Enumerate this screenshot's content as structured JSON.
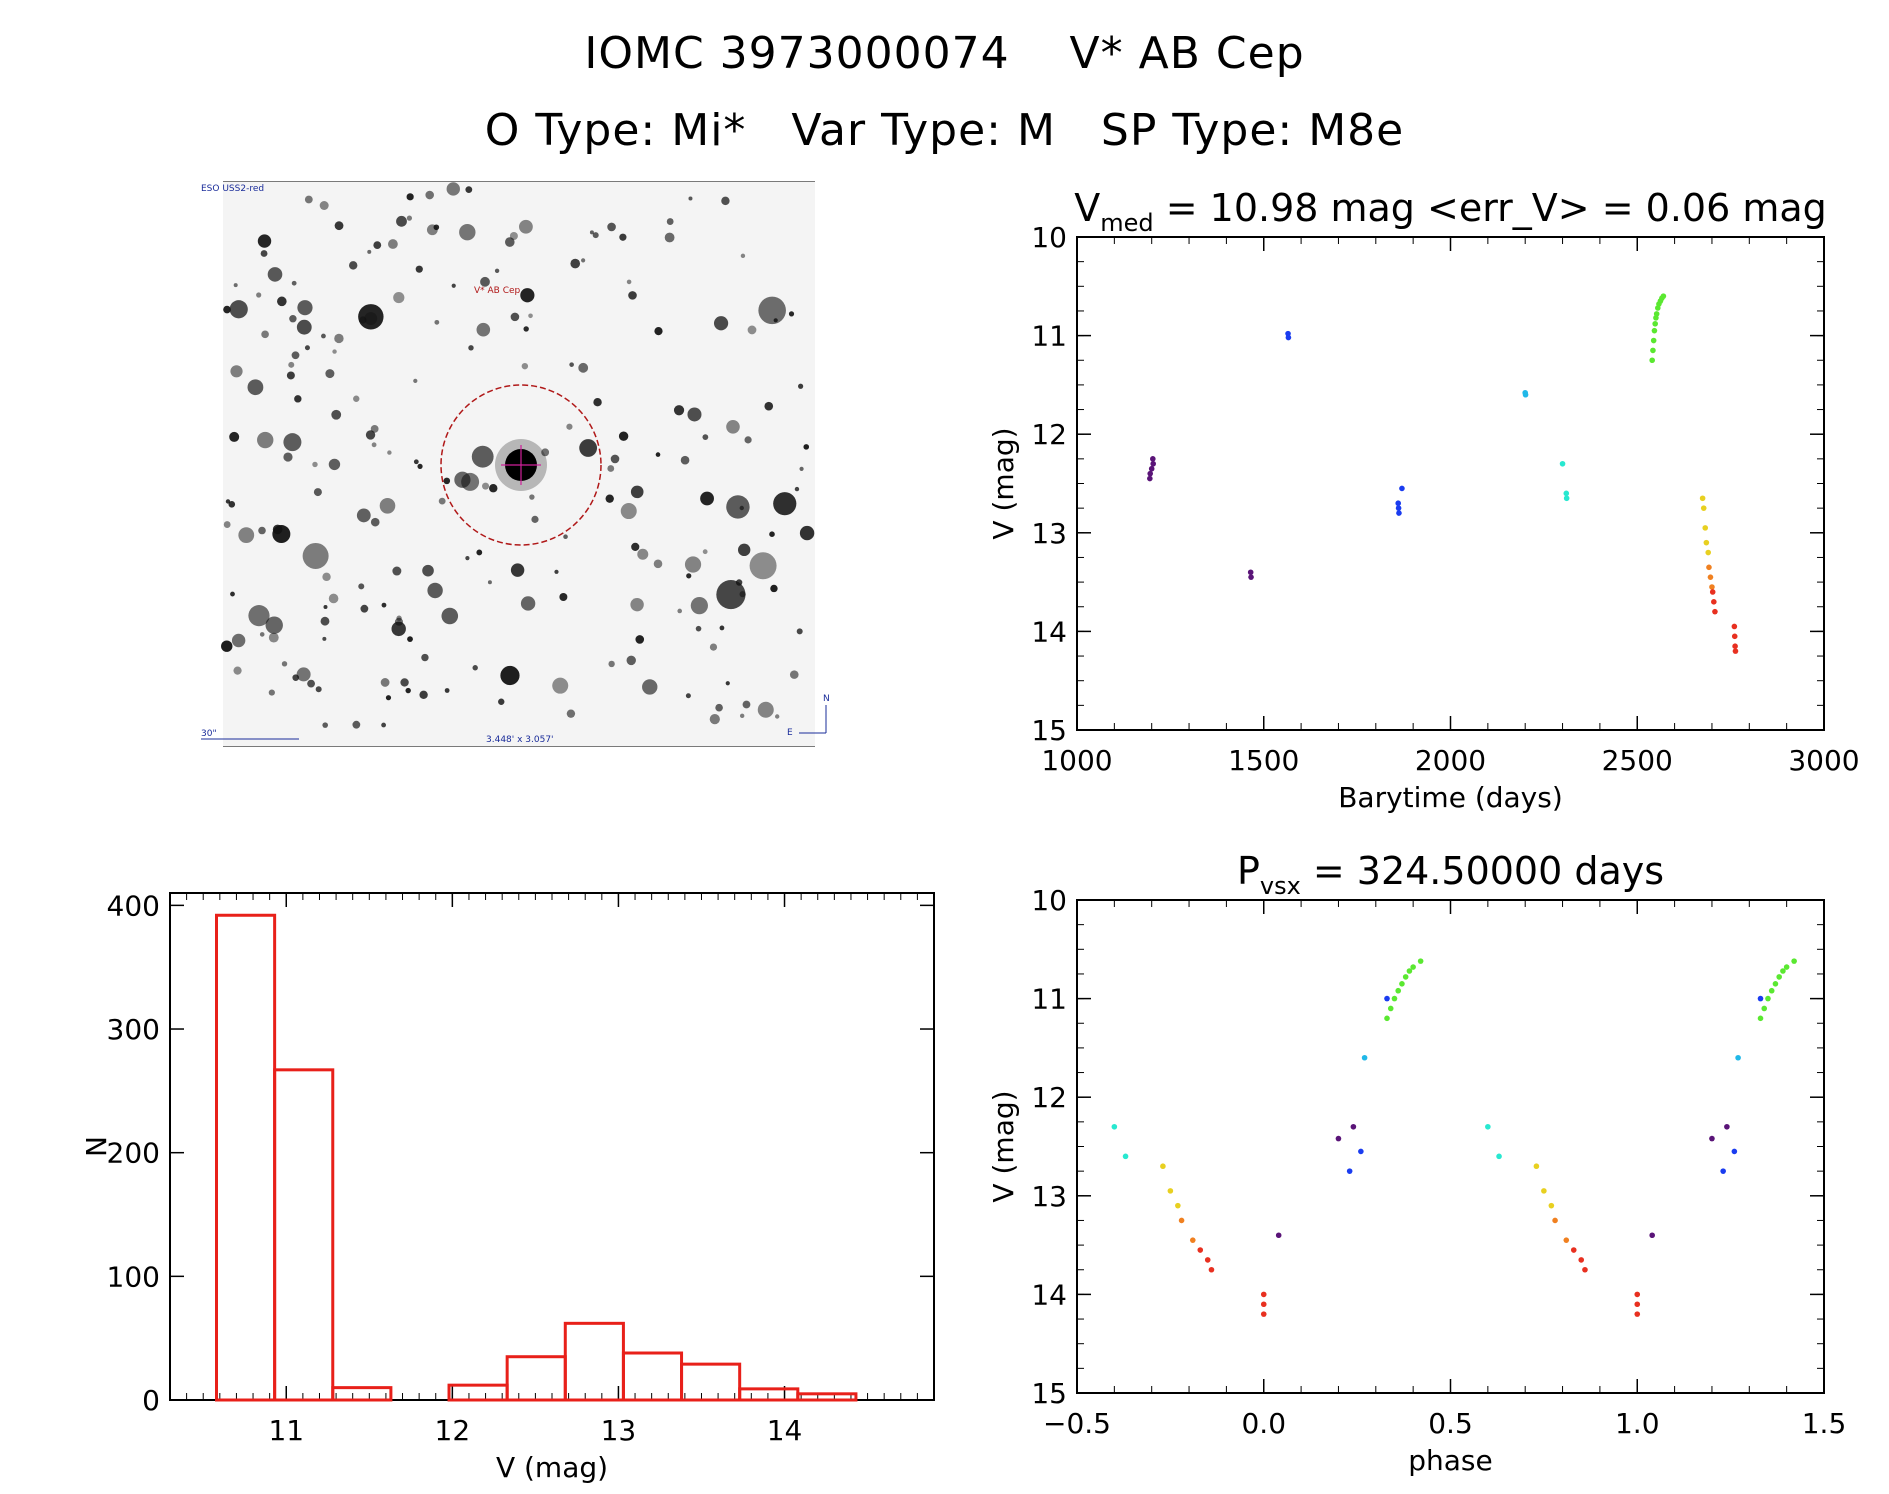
{
  "header": {
    "line1": "IOMC 3973000074    V* AB Cep",
    "line2": "O Type: Mi*   Var Type: M   SP Type: M8e"
  },
  "finder": {
    "survey": "ESO USS2-red",
    "target_label": "V* AB Cep",
    "scale_label": "30\"",
    "size_label": "3.448' x 3.057'",
    "north": "N",
    "east": "E"
  },
  "colors": {
    "histogram": "#e8201a",
    "axis": "#000000",
    "circle": "#b01818",
    "crosshair": "#d0209a"
  },
  "chart_data": [
    {
      "id": "lightcurve",
      "type": "scatter",
      "title_main": "V",
      "title_sub": "med",
      "title_rest": " = 10.98 mag <err_V> = 0.06 mag",
      "xlabel": "Barytime (days)",
      "ylabel": "V (mag)",
      "xlim": [
        1000,
        3000
      ],
      "ylim": [
        10,
        15
      ],
      "y_inverted": true,
      "xticks": [
        1000,
        1500,
        2000,
        2500,
        3000
      ],
      "yticks": [
        10,
        11,
        12,
        13,
        14,
        15
      ],
      "groups": [
        {
          "color": "#5a1478",
          "points": [
            [
              1195,
              12.45
            ],
            [
              1196,
              12.4
            ],
            [
              1200,
              12.35
            ],
            [
              1203,
              12.25
            ],
            [
              1204,
              12.3
            ]
          ]
        },
        {
          "color": "#5a1478",
          "points": [
            [
              1465,
              13.4
            ],
            [
              1466,
              13.45
            ]
          ]
        },
        {
          "color": "#1a3cf0",
          "points": [
            [
              1565,
              10.98
            ],
            [
              1566,
              11.02
            ]
          ]
        },
        {
          "color": "#1a3cf0",
          "points": [
            [
              1860,
              12.7
            ],
            [
              1861,
              12.75
            ],
            [
              1862,
              12.8
            ],
            [
              1870,
              12.55
            ]
          ]
        },
        {
          "color": "#20b8e8",
          "points": [
            [
              2200,
              11.58
            ],
            [
              2201,
              11.6
            ]
          ]
        },
        {
          "color": "#28e8d0",
          "points": [
            [
              2300,
              12.3
            ],
            [
              2310,
              12.6
            ],
            [
              2311,
              12.65
            ]
          ]
        },
        {
          "color": "#5ae830",
          "points": [
            [
              2540,
              11.25
            ],
            [
              2542,
              11.15
            ],
            [
              2544,
              11.05
            ],
            [
              2546,
              10.95
            ],
            [
              2548,
              10.88
            ],
            [
              2550,
              10.82
            ],
            [
              2552,
              10.78
            ],
            [
              2555,
              10.72
            ],
            [
              2558,
              10.68
            ],
            [
              2562,
              10.65
            ],
            [
              2566,
              10.62
            ],
            [
              2570,
              10.6
            ]
          ]
        },
        {
          "color": "#e8d020",
          "points": [
            [
              2675,
              12.65
            ],
            [
              2678,
              12.75
            ],
            [
              2682,
              12.95
            ],
            [
              2685,
              13.1
            ],
            [
              2690,
              13.2
            ]
          ]
        },
        {
          "color": "#f08020",
          "points": [
            [
              2692,
              13.35
            ],
            [
              2696,
              13.45
            ],
            [
              2700,
              13.55
            ]
          ]
        },
        {
          "color": "#e83020",
          "points": [
            [
              2702,
              13.6
            ],
            [
              2705,
              13.7
            ],
            [
              2708,
              13.8
            ],
            [
              2760,
              13.95
            ],
            [
              2761,
              14.05
            ],
            [
              2762,
              14.15
            ],
            [
              2763,
              14.2
            ]
          ]
        }
      ]
    },
    {
      "id": "histogram",
      "type": "bar",
      "xlabel": "V (mag)",
      "ylabel": "N",
      "xlim": [
        10.3,
        14.9
      ],
      "ylim": [
        0,
        410
      ],
      "xticks": [
        11,
        12,
        13,
        14
      ],
      "yticks": [
        0,
        100,
        200,
        300,
        400
      ],
      "bin_edges": [
        10.58,
        10.93,
        11.28,
        11.63,
        11.98,
        12.33,
        12.68,
        13.03,
        13.38,
        13.73,
        14.08,
        14.43
      ],
      "values": [
        392,
        267,
        10,
        0,
        12,
        35,
        62,
        38,
        29,
        9,
        5
      ]
    },
    {
      "id": "phased",
      "type": "scatter",
      "title_main": "P",
      "title_sub": "vsx",
      "title_rest": " = 324.50000 days",
      "xlabel": "phase",
      "ylabel": "V (mag)",
      "xlim": [
        -0.5,
        1.5
      ],
      "ylim": [
        10,
        15
      ],
      "y_inverted": true,
      "xticks": [
        -0.5,
        0.0,
        0.5,
        1.0,
        1.5
      ],
      "xticklabels": [
        "-0.5",
        "0.0",
        "0.5",
        "1.0",
        "1.5"
      ],
      "yticks": [
        10,
        11,
        12,
        13,
        14,
        15
      ],
      "groups": [
        {
          "color": "#28e8d0",
          "points": [
            [
              -0.4,
              12.3
            ],
            [
              -0.37,
              12.6
            ],
            [
              0.6,
              12.3
            ],
            [
              0.63,
              12.6
            ]
          ]
        },
        {
          "color": "#e8d020",
          "points": [
            [
              -0.27,
              12.7
            ],
            [
              -0.25,
              12.95
            ],
            [
              -0.23,
              13.1
            ],
            [
              0.73,
              12.7
            ],
            [
              0.75,
              12.95
            ],
            [
              0.77,
              13.1
            ]
          ]
        },
        {
          "color": "#f08020",
          "points": [
            [
              -0.22,
              13.25
            ],
            [
              -0.19,
              13.45
            ],
            [
              0.78,
              13.25
            ],
            [
              0.81,
              13.45
            ]
          ]
        },
        {
          "color": "#e83020",
          "points": [
            [
              -0.17,
              13.55
            ],
            [
              -0.15,
              13.65
            ],
            [
              -0.14,
              13.75
            ],
            [
              0.0,
              14.0
            ],
            [
              0.0,
              14.1
            ],
            [
              0.0,
              14.2
            ],
            [
              0.83,
              13.55
            ],
            [
              0.85,
              13.65
            ],
            [
              0.86,
              13.75
            ],
            [
              1.0,
              14.0
            ],
            [
              1.0,
              14.1
            ],
            [
              1.0,
              14.2
            ]
          ]
        },
        {
          "color": "#5a1478",
          "points": [
            [
              0.04,
              13.4
            ],
            [
              0.2,
              12.42
            ],
            [
              0.24,
              12.3
            ],
            [
              1.04,
              13.4
            ],
            [
              1.2,
              12.42
            ],
            [
              1.24,
              12.3
            ]
          ]
        },
        {
          "color": "#1a3cf0",
          "points": [
            [
              0.23,
              12.75
            ],
            [
              0.26,
              12.55
            ],
            [
              0.33,
              11.0
            ],
            [
              1.23,
              12.75
            ],
            [
              1.26,
              12.55
            ],
            [
              1.33,
              11.0
            ]
          ]
        },
        {
          "color": "#20b8e8",
          "points": [
            [
              0.27,
              11.6
            ],
            [
              1.27,
              11.6
            ]
          ]
        },
        {
          "color": "#5ae830",
          "points": [
            [
              0.33,
              11.2
            ],
            [
              0.34,
              11.1
            ],
            [
              0.35,
              11.0
            ],
            [
              0.36,
              10.92
            ],
            [
              0.37,
              10.85
            ],
            [
              0.38,
              10.78
            ],
            [
              0.39,
              10.72
            ],
            [
              0.4,
              10.68
            ],
            [
              0.42,
              10.62
            ],
            [
              1.33,
              11.2
            ],
            [
              1.34,
              11.1
            ],
            [
              1.35,
              11.0
            ],
            [
              1.36,
              10.92
            ],
            [
              1.37,
              10.85
            ],
            [
              1.38,
              10.78
            ],
            [
              1.39,
              10.72
            ],
            [
              1.4,
              10.68
            ],
            [
              1.42,
              10.62
            ]
          ]
        }
      ]
    }
  ]
}
